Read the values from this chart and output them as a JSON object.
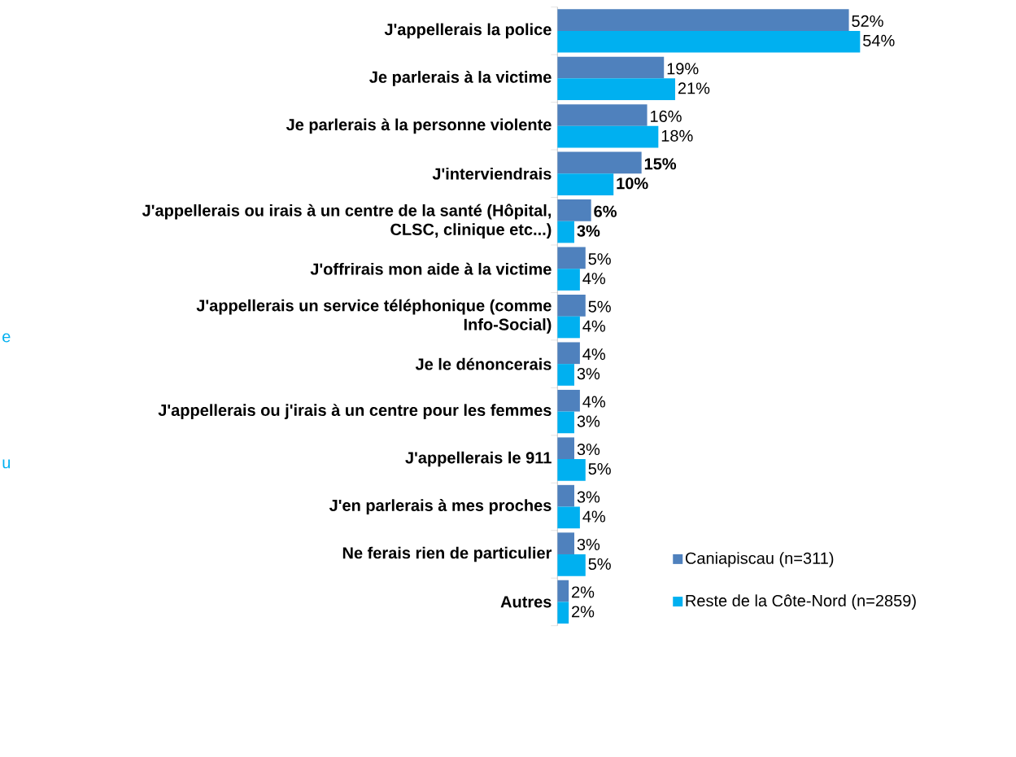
{
  "chart_data": {
    "type": "bar",
    "orientation": "horizontal",
    "categories": [
      "J'appellerais la police",
      "Je parlerais à la victime",
      "Je parlerais à la personne violente",
      "J'interviendrais",
      "J'appellerais ou irais à un centre de la santé (Hôpital, CLSC, clinique etc...)",
      "J'offrirais mon aide à la victime",
      "J'appellerais un service téléphonique (comme Info-Social)",
      "Je le dénoncerais",
      "J'appellerais ou j'irais à un centre pour les femmes",
      "J'appellerais le 911",
      "J'en parlerais à mes proches",
      "Ne ferais rien de particulier",
      "Autres"
    ],
    "series": [
      {
        "name": "Caniapiscau (n=311)",
        "color": "#4f81bd",
        "values": [
          52,
          19,
          16,
          15,
          6,
          5,
          5,
          4,
          4,
          3,
          3,
          3,
          2
        ],
        "value_labels": [
          "52%",
          "19%",
          "16%",
          "**15%**",
          "**6%**",
          "5%",
          "5%",
          "4%",
          "4%",
          "3%",
          "3%",
          "3%",
          "2%"
        ]
      },
      {
        "name": "Reste de la Côte-Nord (n=2859)",
        "color": "#00b0f0",
        "values": [
          54,
          21,
          18,
          10,
          3,
          4,
          4,
          3,
          3,
          5,
          4,
          5,
          2
        ],
        "value_labels": [
          "54%",
          "21%",
          "18%",
          "**10%**",
          "**3%**",
          "4%",
          "4%",
          "3%",
          "3%",
          "5%",
          "4%",
          "5%",
          "2%"
        ]
      }
    ],
    "legend": "bottom right",
    "annotations": [
      "e",
      "u"
    ]
  }
}
